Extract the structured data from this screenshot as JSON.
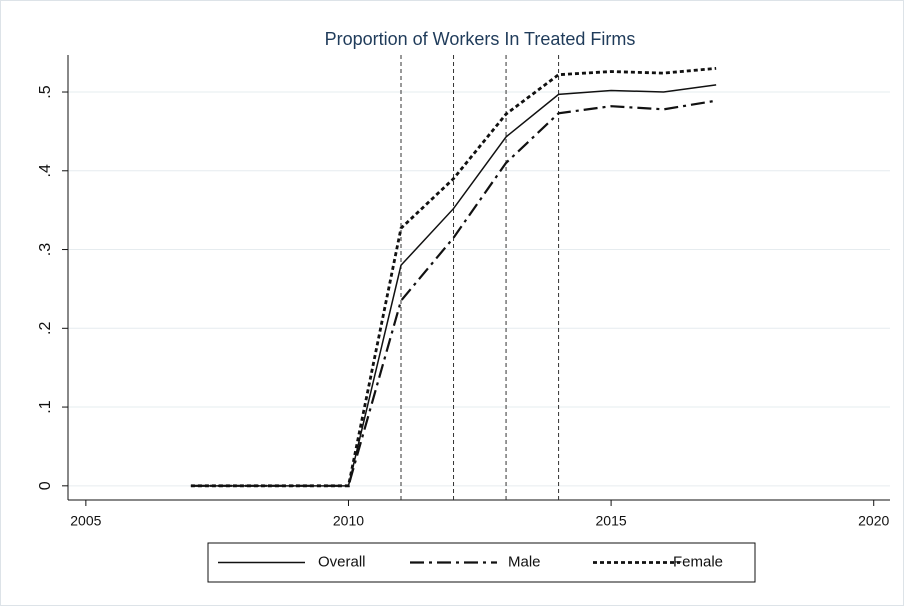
{
  "chart_data": {
    "type": "line",
    "title": "Proportion of Workers In Treated Firms",
    "x": [
      2007,
      2008,
      2009,
      2010,
      2011,
      2012,
      2013,
      2014,
      2015,
      2016,
      2017
    ],
    "series": [
      {
        "name": "Overall",
        "color": "#111111",
        "linestyle": "solid",
        "values": [
          0,
          0,
          0,
          0,
          0.28,
          0.352,
          0.443,
          0.497,
          0.502,
          0.5,
          0.509
        ]
      },
      {
        "name": "Male",
        "color": "#111111",
        "linestyle": "dashdot",
        "values": [
          0,
          0,
          0,
          0,
          0.235,
          0.315,
          0.41,
          0.473,
          0.482,
          0.478,
          0.489
        ]
      },
      {
        "name": "Female",
        "color": "#111111",
        "linestyle": "dot",
        "values": [
          0,
          0,
          0,
          0,
          0.327,
          0.39,
          0.472,
          0.522,
          0.526,
          0.524,
          0.53
        ]
      }
    ],
    "xlines": [
      2011,
      2012,
      2013,
      2014
    ],
    "xlim": [
      2004.66,
      2020.31
    ],
    "xticks": [
      2005,
      2010,
      2015,
      2020
    ],
    "ylim": [
      -0.018,
      0.547
    ],
    "yticks": [
      0,
      {
        "value": 0.1,
        "label": ".1"
      },
      {
        "value": 0.2,
        "label": ".2"
      },
      {
        "value": 0.3,
        "label": ".3"
      },
      {
        "value": 0.4,
        "label": ".4"
      },
      {
        "value": 0.5,
        "label": ".5"
      }
    ],
    "grid": true,
    "legend": "bottom"
  }
}
